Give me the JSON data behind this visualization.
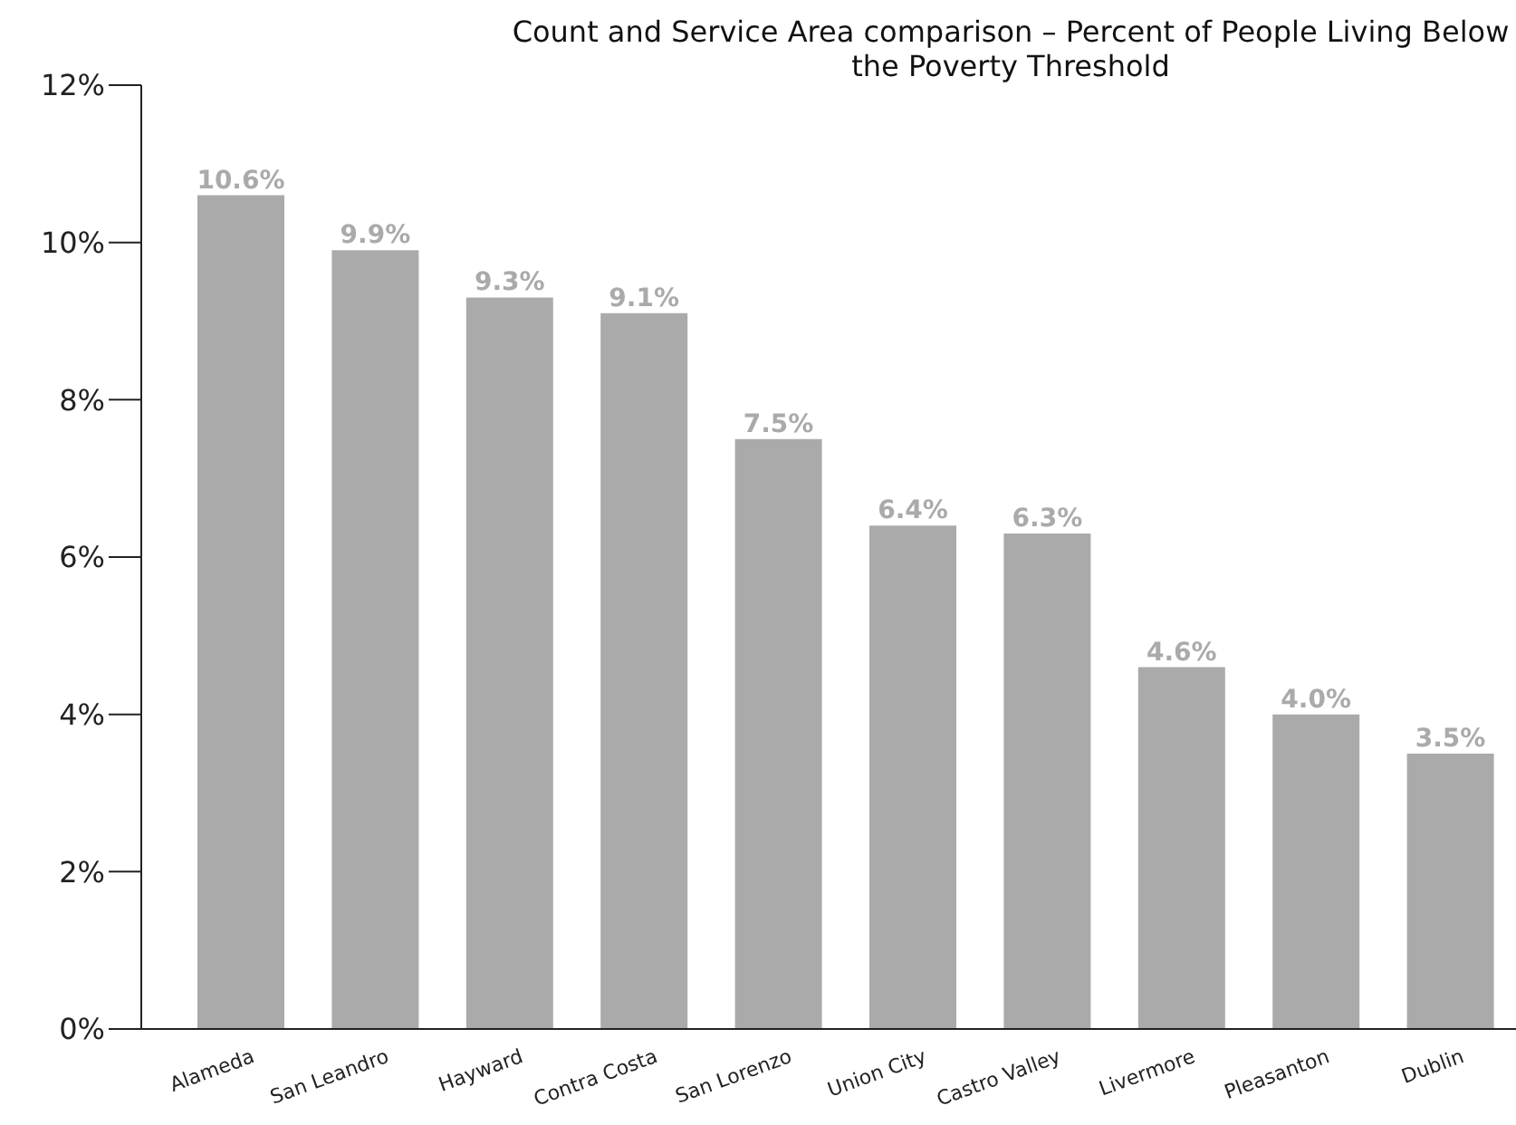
{
  "chart_data": {
    "type": "bar",
    "title": "Count and Service Area comparison – Percent of People Living Below the Poverty Threshold",
    "categories": [
      "Alameda",
      "San Leandro",
      "Hayward",
      "Contra Costa",
      "San Lorenzo",
      "Union City",
      "Castro Valley",
      "Livermore",
      "Pleasanton",
      "Dublin"
    ],
    "values": [
      10.6,
      9.9,
      9.3,
      9.1,
      7.5,
      6.4,
      6.3,
      4.6,
      4.0,
      3.5
    ],
    "value_labels": [
      "10.6%",
      "9.9%",
      "9.3%",
      "9.1%",
      "7.5%",
      "6.4%",
      "6.3%",
      "4.6%",
      "4.0%",
      "3.5%"
    ],
    "color": "#aaaaaa",
    "ylim": [
      0,
      12
    ],
    "yticks": [
      {
        "value": 0,
        "label": "0%"
      },
      {
        "value": 2,
        "label": "2%"
      },
      {
        "value": 4,
        "label": "4%"
      },
      {
        "value": 6,
        "label": "6%"
      },
      {
        "value": 8,
        "label": "8%"
      },
      {
        "value": 10,
        "label": "10%"
      },
      {
        "value": 12,
        "label": "12%"
      }
    ],
    "grid": false,
    "legend": false
  }
}
